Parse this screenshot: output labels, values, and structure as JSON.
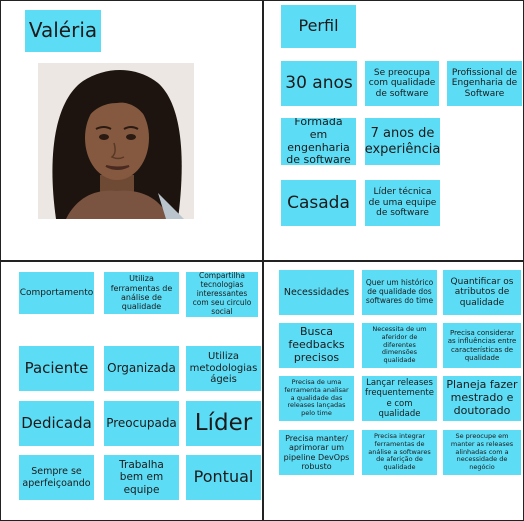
{
  "persona": {
    "name": "Valéria",
    "photo_icon": "woman-portrait"
  },
  "perfil": {
    "title": "Perfil",
    "items": [
      "30 anos",
      "Se preocupa com qualidade de software",
      "Profissional de Engenharia de Software",
      "Formada em engenharia de software",
      "7 anos de experiência",
      "Casada",
      "Líder técnica de uma equipe de software"
    ]
  },
  "comportamento": {
    "title": "Comportamento",
    "items": [
      "Utiliza ferramentas de análise de qualidade",
      "Compartilha tecnologias interessantes com seu circulo social",
      "Paciente",
      "Organizada",
      "Utiliza metodologias ágeis",
      "Dedicada",
      "Preocupada",
      "Líder",
      "Sempre se aperfeiçoando",
      "Trabalha bem em equipe",
      "Pontual"
    ]
  },
  "necessidades": {
    "title": "Necessidades",
    "items": [
      "Quer um histórico de qualidade dos softwares do time",
      "Quantificar os atributos de qualidade",
      "Busca feedbacks precisos",
      "Necessita de um aferidor de diferentes dimensões qualidade",
      "Precisa considerar as influências entre características de qualidade",
      "Precisa de uma ferramenta analisar a qualidade das releases lançadas pelo time",
      "Lançar releases frequentemente e com qualidade",
      "Planeja fazer mestrado e doutorado",
      "Precisa manter/ aprimorar um pipeline DevOps robusto",
      "Precisa integrar ferramentas de análise a softwares de aferição de qualidade",
      "Se preocupe em manter as releases alinhadas com a necessidade de negócio"
    ]
  },
  "colors": {
    "sticky_note": "#5ddcf5",
    "border": "#222222",
    "background": "#ffffff"
  }
}
